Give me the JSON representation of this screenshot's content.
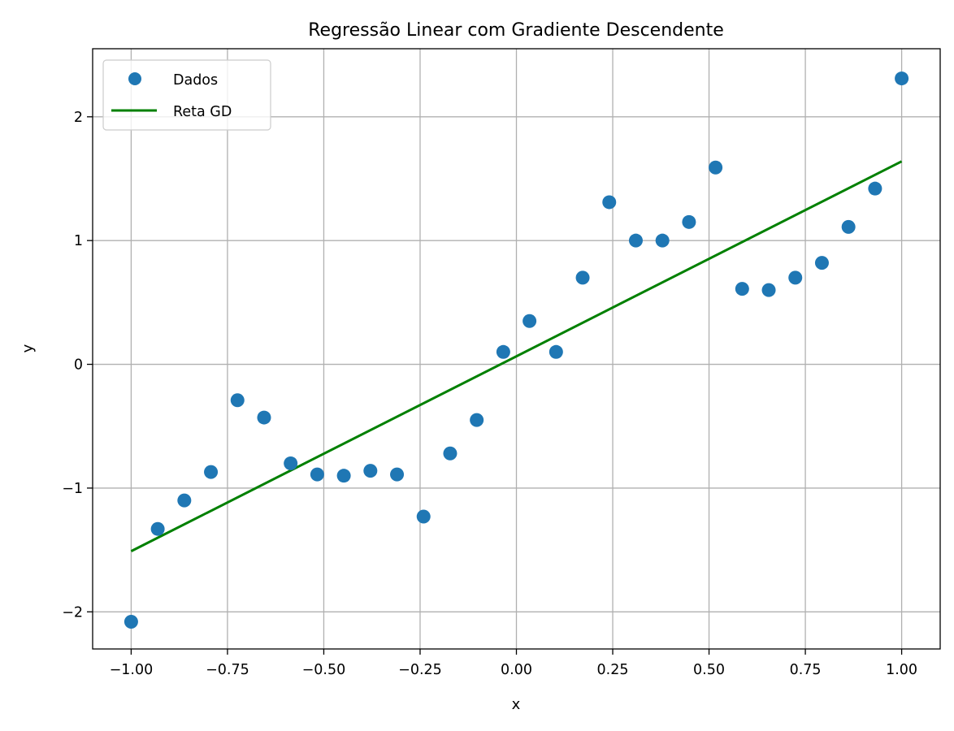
{
  "chart_data": {
    "type": "scatter",
    "title": "Regressão Linear com Gradiente Descendente",
    "xlabel": "x",
    "ylabel": "y",
    "xlim": [
      -1.1,
      1.1
    ],
    "ylim": [
      -2.3,
      2.55
    ],
    "grid": true,
    "legend_position": "top-left",
    "x_ticks": [
      -1.0,
      -0.75,
      -0.5,
      -0.25,
      0.0,
      0.25,
      0.5,
      0.75,
      1.0
    ],
    "x_tick_labels": [
      "−1.00",
      "−0.75",
      "−0.50",
      "−0.25",
      "0.00",
      "0.25",
      "0.50",
      "0.75",
      "1.00"
    ],
    "y_ticks": [
      -2,
      -1,
      0,
      1,
      2
    ],
    "y_tick_labels": [
      "−2",
      "−1",
      "0",
      "1",
      "2"
    ],
    "series": [
      {
        "name": "Dados",
        "kind": "scatter",
        "color": "#1f77b4",
        "points": [
          [
            -1.0,
            -2.08
          ],
          [
            -0.931,
            -1.33
          ],
          [
            -0.862,
            -1.1
          ],
          [
            -0.793,
            -0.87
          ],
          [
            -0.724,
            -0.29
          ],
          [
            -0.655,
            -0.43
          ],
          [
            -0.586,
            -0.8
          ],
          [
            -0.517,
            -0.89
          ],
          [
            -0.448,
            -0.9
          ],
          [
            -0.379,
            -0.86
          ],
          [
            -0.31,
            -0.89
          ],
          [
            -0.241,
            -1.23
          ],
          [
            -0.172,
            -0.72
          ],
          [
            -0.103,
            -0.45
          ],
          [
            -0.034,
            0.1
          ],
          [
            0.034,
            0.35
          ],
          [
            0.103,
            0.1
          ],
          [
            0.172,
            0.7
          ],
          [
            0.241,
            1.31
          ],
          [
            0.31,
            1.0
          ],
          [
            0.379,
            1.0
          ],
          [
            0.448,
            1.15
          ],
          [
            0.517,
            1.59
          ],
          [
            0.586,
            0.61
          ],
          [
            0.655,
            0.6
          ],
          [
            0.724,
            0.7
          ],
          [
            0.793,
            0.82
          ],
          [
            0.862,
            1.11
          ],
          [
            0.931,
            1.42
          ],
          [
            1.0,
            2.31
          ]
        ]
      },
      {
        "name": "Reta GD",
        "kind": "line",
        "color": "#008000",
        "points": [
          [
            -1.0,
            -1.51
          ],
          [
            1.0,
            1.64
          ]
        ]
      }
    ]
  }
}
